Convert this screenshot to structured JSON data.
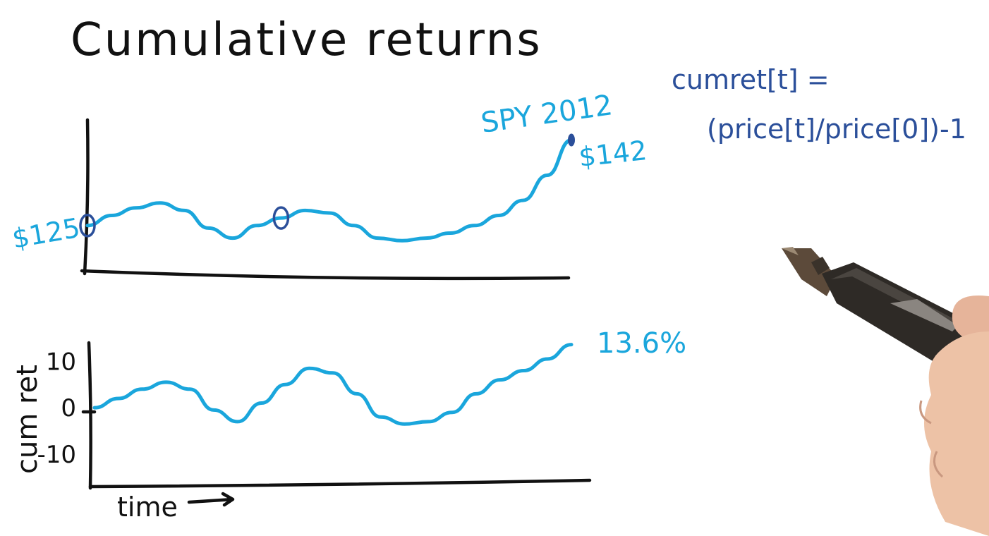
{
  "title": "Cumulative returns",
  "formula": {
    "line1": "cumret[t] =",
    "line2": "(price[t]/price[0])-1"
  },
  "colors": {
    "series": "#1aa6dc",
    "markers": "#2b4f9a",
    "axes": "#111111",
    "formula": "#2b4f9a"
  },
  "icons": [
    "stylus-pen-icon",
    "hand-icon"
  ],
  "chart_data": [
    {
      "type": "line",
      "series": [
        {
          "name": "SPY 2012",
          "x": [
            0,
            1,
            2,
            3,
            4,
            5,
            6,
            7,
            8,
            9,
            10,
            11,
            12,
            13,
            14,
            15,
            16,
            17,
            18,
            19,
            20
          ],
          "values": [
            125,
            127,
            128.5,
            129.5,
            128,
            124.5,
            122.5,
            125,
            126.5,
            128,
            127.5,
            125,
            122.5,
            122,
            122.5,
            123.5,
            125,
            127,
            130,
            135,
            142
          ]
        }
      ],
      "start_label": "$125",
      "end_label": "$142",
      "ylim": [
        116,
        146
      ],
      "markers": [
        {
          "index": 0,
          "style": "circle"
        },
        {
          "index": 8,
          "style": "circle"
        },
        {
          "index": 20,
          "style": "dot"
        }
      ]
    },
    {
      "type": "line",
      "xlabel": "time",
      "ylabel": "cum ret",
      "yticks": [
        "10",
        "0",
        "-10"
      ],
      "ytick_values": [
        10,
        0,
        -10
      ],
      "ylim": [
        -17,
        14
      ],
      "series": [
        {
          "x": [
            0,
            1,
            2,
            3,
            4,
            5,
            6,
            7,
            8,
            9,
            10,
            11,
            12,
            13,
            14,
            15,
            16,
            17,
            18,
            19,
            20
          ],
          "values": [
            0,
            2,
            4,
            5.5,
            4,
            -0.5,
            -3,
            1,
            5,
            8.5,
            7.5,
            3,
            -2,
            -3.5,
            -3,
            -1,
            3,
            6,
            8,
            10.5,
            13.6
          ]
        }
      ],
      "end_label": "13.6%"
    }
  ]
}
